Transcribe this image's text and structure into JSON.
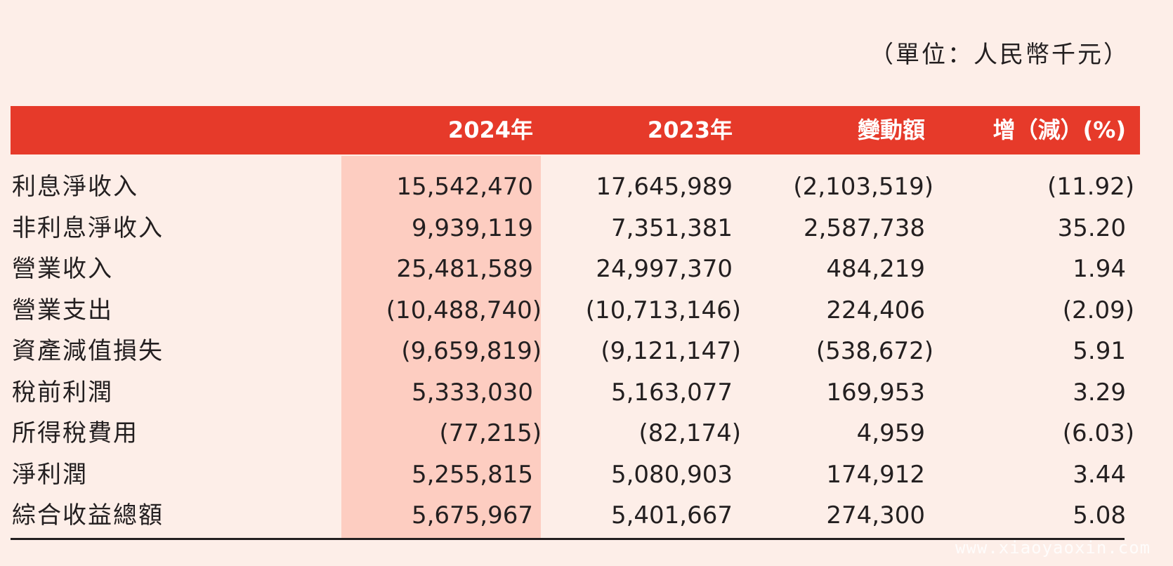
{
  "unit_note": "（單位：人民幣千元）",
  "columns": [
    "",
    "2024年",
    "2023年",
    "變動額",
    "增（減）(%)"
  ],
  "rows": [
    {
      "label": "利息淨收入",
      "v2024": "15,542,470",
      "v2023": "17,645,989",
      "change": "(2,103,519)",
      "pct": "(11.92)"
    },
    {
      "label": "非利息淨收入",
      "v2024": "9,939,119",
      "v2023": "7,351,381",
      "change": "2,587,738",
      "pct": "35.20"
    },
    {
      "label": "營業收入",
      "v2024": "25,481,589",
      "v2023": "24,997,370",
      "change": "484,219",
      "pct": "1.94"
    },
    {
      "label": "營業支出",
      "v2024": "(10,488,740)",
      "v2023": "(10,713,146)",
      "change": "224,406",
      "pct": "(2.09)"
    },
    {
      "label": "資產減值損失",
      "v2024": "(9,659,819)",
      "v2023": "(9,121,147)",
      "change": "(538,672)",
      "pct": "5.91"
    },
    {
      "label": "稅前利潤",
      "v2024": "5,333,030",
      "v2023": "5,163,077",
      "change": "169,953",
      "pct": "3.29"
    },
    {
      "label": "所得稅費用",
      "v2024": "(77,215)",
      "v2023": "(82,174)",
      "change": "4,959",
      "pct": "(6.03)"
    },
    {
      "label": "淨利潤",
      "v2024": "5,255,815",
      "v2023": "5,080,903",
      "change": "174,912",
      "pct": "3.44"
    },
    {
      "label": "綜合收益總額",
      "v2024": "5,675,967",
      "v2023": "5,401,667",
      "change": "274,300",
      "pct": "5.08"
    }
  ],
  "watermark": "www.xiaoyaoxin.com",
  "colors": {
    "header_bg": "#e63a2a",
    "highlight_column": "#fdcdc1",
    "page_bg": "#fdeee8"
  }
}
